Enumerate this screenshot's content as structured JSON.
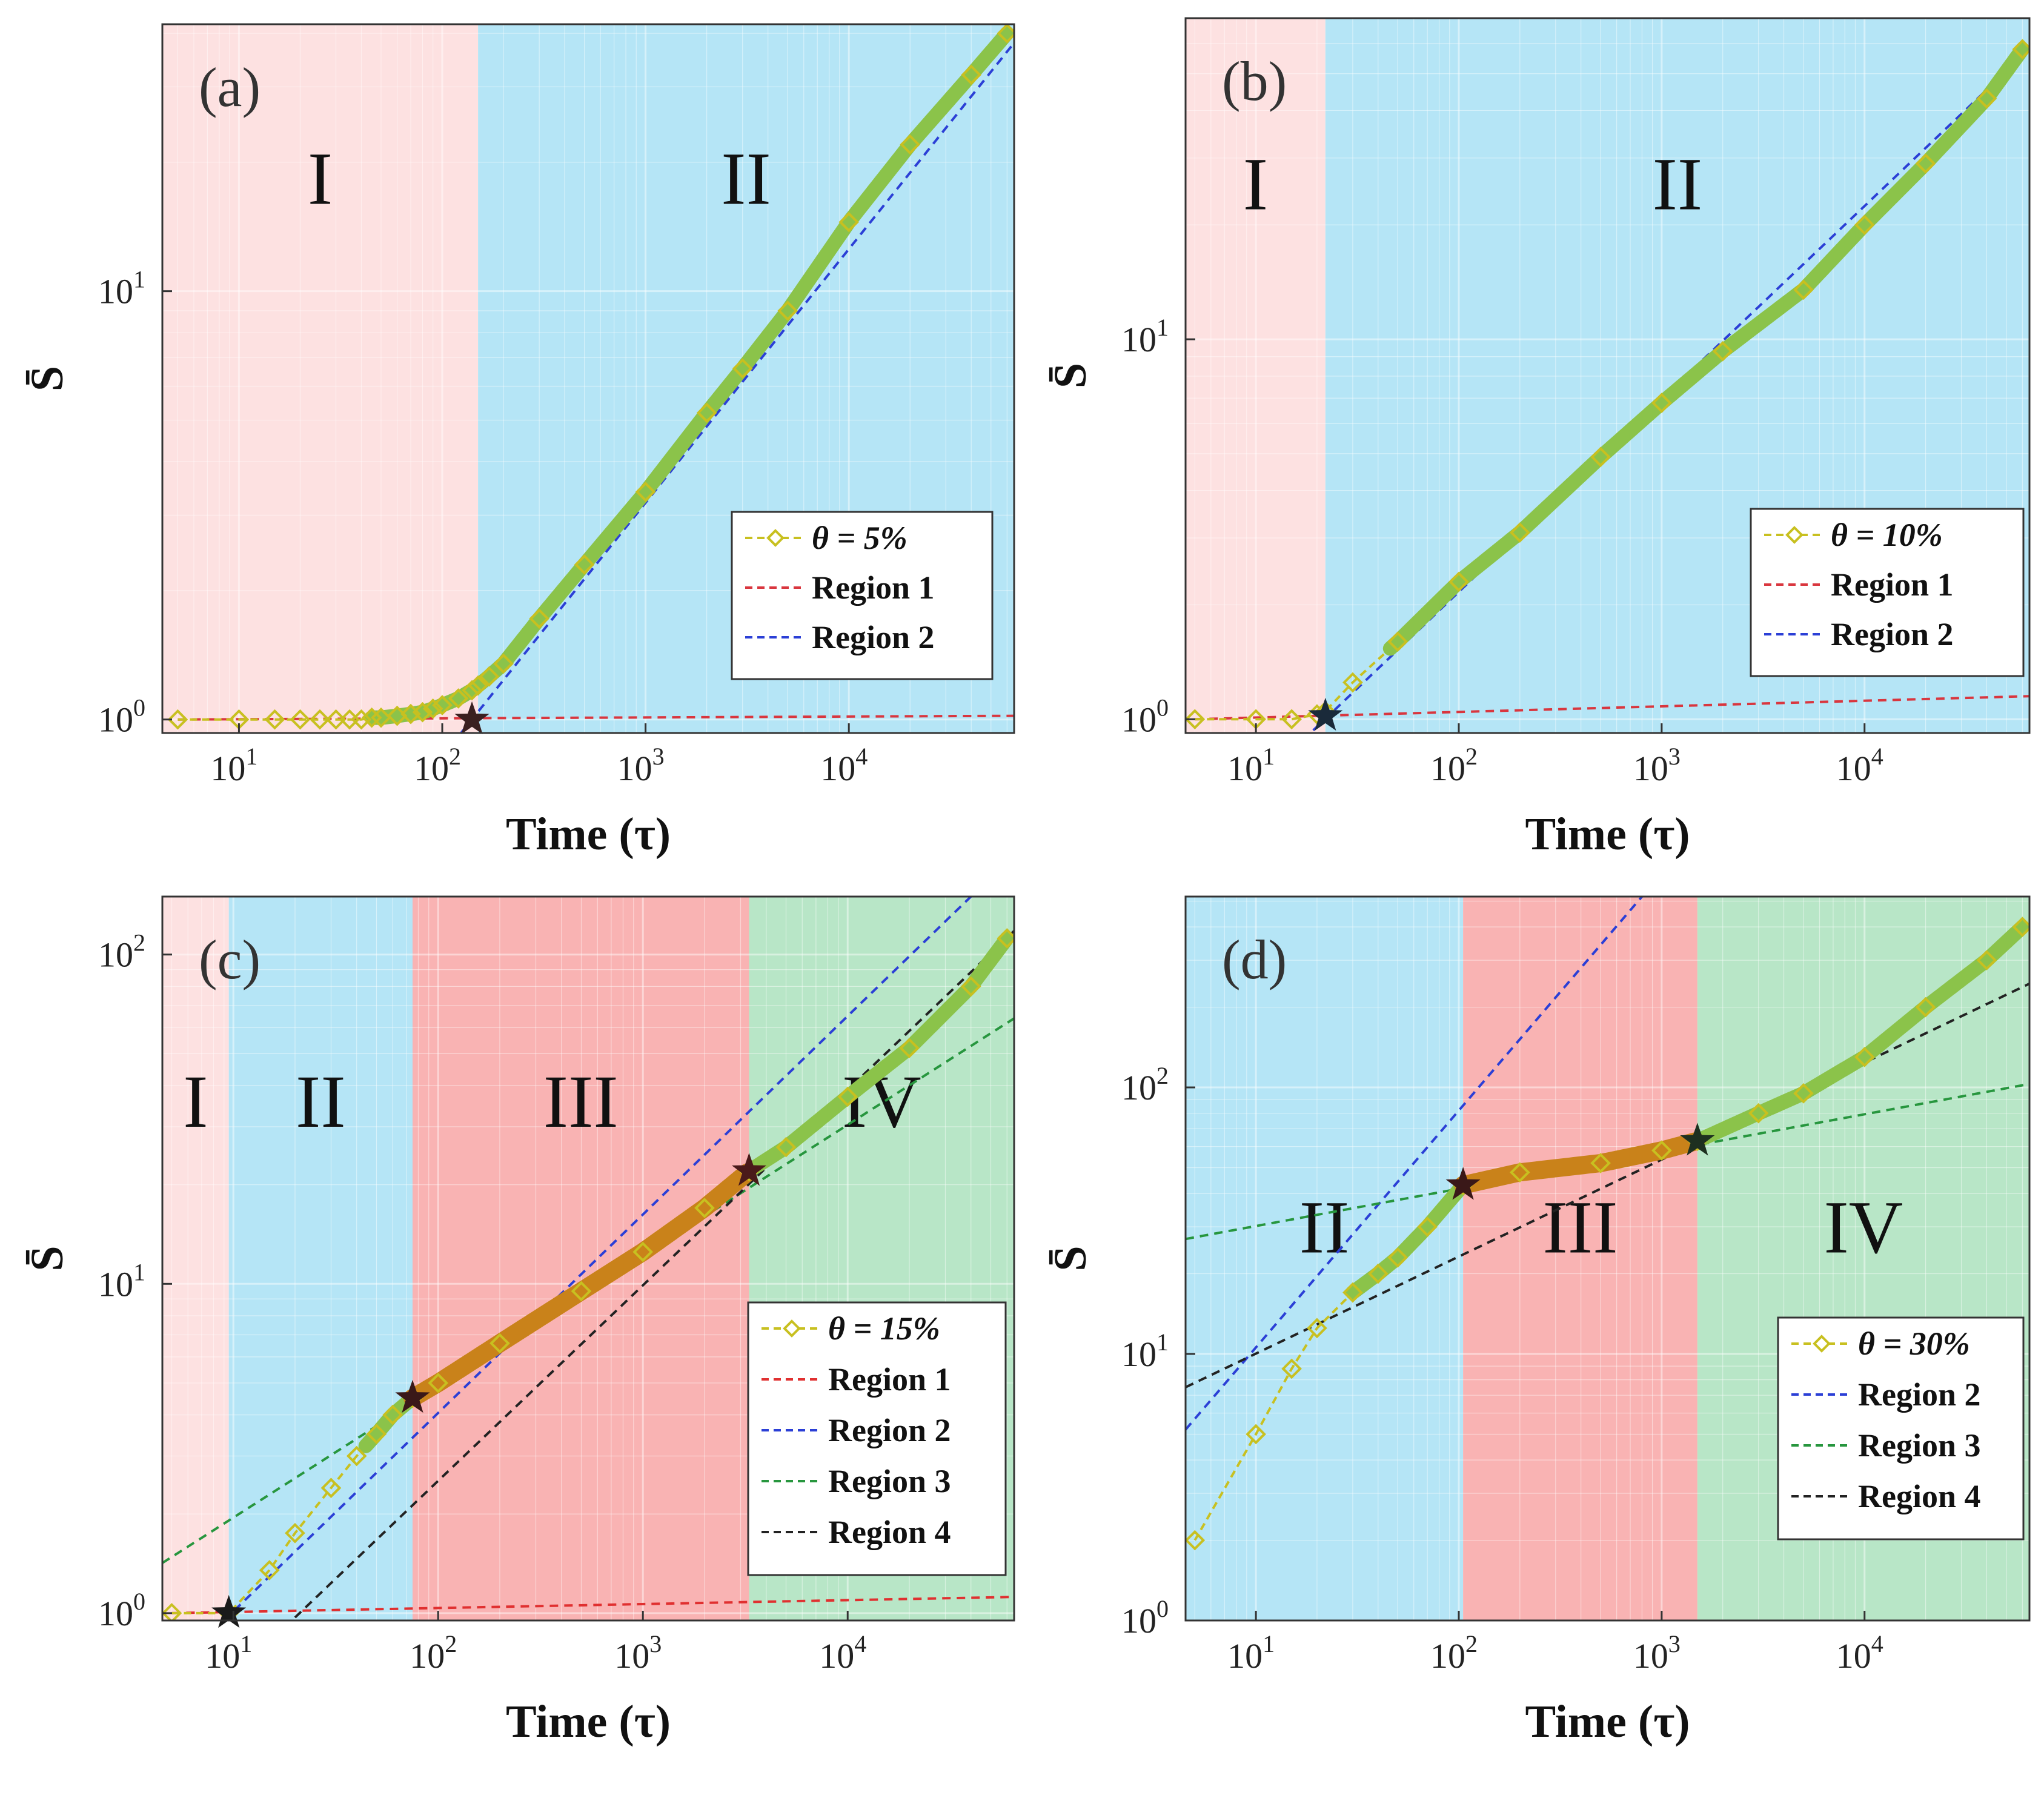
{
  "chart_data": [
    {
      "id": "a",
      "type": "line",
      "panel_label": "(a)",
      "xlabel": "Time (τ)",
      "ylabel": "S̄",
      "xscale": "log",
      "yscale": "log",
      "xlim": [
        4.2,
        65000
      ],
      "ylim": [
        0.93,
        42
      ],
      "x_ticks": [
        {
          "base": "10",
          "exp": "1",
          "value": 10
        },
        {
          "base": "10",
          "exp": "2",
          "value": 100
        },
        {
          "base": "10",
          "exp": "3",
          "value": 1000
        },
        {
          "base": "10",
          "exp": "4",
          "value": 10000
        }
      ],
      "y_ticks": [
        {
          "base": "10",
          "exp": "0",
          "value": 1
        },
        {
          "base": "10",
          "exp": "1",
          "value": 10
        }
      ],
      "regions": [
        {
          "label": "I",
          "x_start": 4.2,
          "x_end": 150,
          "color": "#fde1e1"
        },
        {
          "label": "II",
          "x_start": 150,
          "x_end": 65000,
          "color": "#b5e5f6"
        }
      ],
      "region_label_y": 16,
      "series": [
        {
          "name": "θ = 5%",
          "kind": "data",
          "color": "#c8c020",
          "marker_color": "#8bc34a",
          "x": [
            5,
            10,
            15,
            20,
            25,
            30,
            35,
            40,
            45,
            50,
            60,
            70,
            80,
            90,
            100,
            120,
            140,
            150,
            170,
            200,
            300,
            500,
            1000,
            2000,
            3000,
            5000,
            10000,
            20000,
            40000,
            60000
          ],
          "y": [
            1.0,
            1.0,
            1.0,
            1.0,
            1.0,
            1.0,
            1.0,
            1.0,
            1.01,
            1.01,
            1.02,
            1.03,
            1.04,
            1.06,
            1.08,
            1.12,
            1.17,
            1.2,
            1.26,
            1.35,
            1.72,
            2.3,
            3.4,
            5.2,
            6.6,
            9.0,
            14.5,
            22,
            32,
            40
          ]
        },
        {
          "name": "Region 1",
          "kind": "fit",
          "color": "#d9363e",
          "x": [
            5,
            65000
          ],
          "y": [
            1.0,
            1.02
          ]
        },
        {
          "name": "Region 2",
          "kind": "fit",
          "color": "#2b3fd6",
          "x": [
            100,
            65000
          ],
          "y": [
            0.82,
            38
          ]
        }
      ],
      "stars": [
        {
          "x": 140,
          "y": 1.0,
          "color": "#3a2020"
        }
      ],
      "legend": {
        "position": "lower-right",
        "entries": [
          {
            "label": "θ = 5%",
            "kind": "data",
            "color": "#c8c020"
          },
          {
            "label": "Region 1",
            "kind": "fit",
            "color": "#d9363e"
          },
          {
            "label": "Region 2",
            "kind": "fit",
            "color": "#2b3fd6"
          }
        ]
      }
    },
    {
      "id": "b",
      "type": "line",
      "panel_label": "(b)",
      "xlabel": "Time (τ)",
      "ylabel": "S̄",
      "xscale": "log",
      "yscale": "log",
      "xlim": [
        4.5,
        65000
      ],
      "ylim": [
        0.92,
        70
      ],
      "x_ticks": [
        {
          "base": "10",
          "exp": "1",
          "value": 10
        },
        {
          "base": "10",
          "exp": "2",
          "value": 100
        },
        {
          "base": "10",
          "exp": "3",
          "value": 1000
        },
        {
          "base": "10",
          "exp": "4",
          "value": 10000
        }
      ],
      "y_ticks": [
        {
          "base": "10",
          "exp": "0",
          "value": 1
        },
        {
          "base": "10",
          "exp": "1",
          "value": 10
        }
      ],
      "regions": [
        {
          "label": "I",
          "x_start": 4.5,
          "x_end": 22,
          "color": "#fde1e1"
        },
        {
          "label": "II",
          "x_start": 22,
          "x_end": 65000,
          "color": "#b5e5f6"
        }
      ],
      "region_label_y": 22,
      "series": [
        {
          "name": "θ = 10%",
          "kind": "data",
          "color": "#c8c020",
          "marker_color": "#8bc34a",
          "x": [
            5,
            10,
            15,
            20,
            22,
            30,
            50,
            100,
            200,
            500,
            1000,
            2000,
            5000,
            10000,
            20000,
            40000,
            60000
          ],
          "y": [
            1.0,
            1.0,
            1.0,
            1.03,
            1.05,
            1.25,
            1.6,
            2.3,
            3.1,
            4.9,
            6.8,
            9.3,
            13.5,
            20,
            29,
            43,
            58
          ]
        },
        {
          "name": "Region 1",
          "kind": "fit",
          "color": "#d9363e",
          "x": [
            5,
            65000
          ],
          "y": [
            1.0,
            1.15
          ]
        },
        {
          "name": "Region 2",
          "kind": "fit",
          "color": "#2b3fd6",
          "x": [
            17,
            65000
          ],
          "y": [
            0.88,
            58
          ]
        }
      ],
      "stars": [
        {
          "x": 22,
          "y": 1.02,
          "color": "#1a2a3a"
        }
      ],
      "legend": {
        "position": "lower-right",
        "entries": [
          {
            "label": "θ = 10%",
            "kind": "data",
            "color": "#c8c020"
          },
          {
            "label": "Region 1",
            "kind": "fit",
            "color": "#d9363e"
          },
          {
            "label": "Region 2",
            "kind": "fit",
            "color": "#2b3fd6"
          }
        ]
      }
    },
    {
      "id": "c",
      "type": "line",
      "panel_label": "(c)",
      "xlabel": "Time (τ)",
      "ylabel": "S̄",
      "xscale": "log",
      "yscale": "log",
      "xlim": [
        4.5,
        65000
      ],
      "ylim": [
        0.95,
        150
      ],
      "x_ticks": [
        {
          "base": "10",
          "exp": "1",
          "value": 10
        },
        {
          "base": "10",
          "exp": "2",
          "value": 100
        },
        {
          "base": "10",
          "exp": "3",
          "value": 1000
        },
        {
          "base": "10",
          "exp": "4",
          "value": 10000
        }
      ],
      "y_ticks": [
        {
          "base": "10",
          "exp": "0",
          "value": 1
        },
        {
          "base": "10",
          "exp": "1",
          "value": 10
        },
        {
          "base": "10",
          "exp": "2",
          "value": 100
        }
      ],
      "regions": [
        {
          "label": "I",
          "x_start": 4.5,
          "x_end": 9.5,
          "color": "#fde1e1"
        },
        {
          "label": "II",
          "x_start": 9.5,
          "x_end": 75,
          "color": "#b5e5f6"
        },
        {
          "label": "III",
          "x_start": 75,
          "x_end": 3300,
          "color": "#f9b3b3"
        },
        {
          "label": "IV",
          "x_start": 3300,
          "x_end": 65000,
          "color": "#b8e6c7"
        }
      ],
      "region_label_y": 30,
      "series": [
        {
          "name": "θ = 15%",
          "kind": "data",
          "color": "#c8c020",
          "marker_color": "#8bc34a",
          "x": [
            5,
            9.5,
            15,
            20,
            30,
            40,
            50,
            60,
            75,
            100,
            200,
            500,
            1000,
            2000,
            3300,
            5000,
            10000,
            20000,
            40000,
            60000
          ],
          "y": [
            1.0,
            1.0,
            1.35,
            1.75,
            2.4,
            3.0,
            3.5,
            4.0,
            4.5,
            5.0,
            6.6,
            9.5,
            12.5,
            17,
            22,
            26,
            37,
            52,
            80,
            112
          ]
        },
        {
          "name": "Region 1",
          "kind": "fit",
          "color": "#e03030",
          "x": [
            5,
            65000
          ],
          "y": [
            1.0,
            1.12
          ]
        },
        {
          "name": "Region 2",
          "kind": "fit",
          "color": "#2b3fd6",
          "x": [
            9,
            40000
          ],
          "y": [
            0.95,
            150
          ]
        },
        {
          "name": "Region 3",
          "kind": "fit",
          "color": "#27963e",
          "x": [
            4.5,
            65000
          ],
          "y": [
            1.42,
            64
          ]
        },
        {
          "name": "Region 4",
          "kind": "fit",
          "color": "#222222",
          "x": [
            20,
            65000
          ],
          "y": [
            0.97,
            118
          ]
        }
      ],
      "highlights": [
        {
          "x_start": 75,
          "x_end": 3300,
          "color": "#c9821a"
        }
      ],
      "stars": [
        {
          "x": 9.5,
          "y": 1.0,
          "color": "#1a1a1a"
        },
        {
          "x": 75,
          "y": 4.5,
          "color": "#3a1818"
        },
        {
          "x": 3300,
          "y": 22,
          "color": "#4a1a1a"
        }
      ],
      "legend": {
        "position": "lower-right",
        "entries": [
          {
            "label": "θ = 15%",
            "kind": "data",
            "color": "#c8c020"
          },
          {
            "label": "Region 1",
            "kind": "fit",
            "color": "#e03030"
          },
          {
            "label": "Region 2",
            "kind": "fit",
            "color": "#2b3fd6"
          },
          {
            "label": "Region 3",
            "kind": "fit",
            "color": "#27963e"
          },
          {
            "label": "Region 4",
            "kind": "fit",
            "color": "#222222"
          }
        ]
      }
    },
    {
      "id": "d",
      "type": "line",
      "panel_label": "(d)",
      "xlabel": "Time (τ)",
      "ylabel": "S̄",
      "xscale": "log",
      "yscale": "log",
      "xlim": [
        4.5,
        65000
      ],
      "ylim": [
        1,
        520
      ],
      "x_ticks": [
        {
          "base": "10",
          "exp": "1",
          "value": 10
        },
        {
          "base": "10",
          "exp": "2",
          "value": 100
        },
        {
          "base": "10",
          "exp": "3",
          "value": 1000
        },
        {
          "base": "10",
          "exp": "4",
          "value": 10000
        }
      ],
      "y_ticks": [
        {
          "base": "10",
          "exp": "0",
          "value": 1
        },
        {
          "base": "10",
          "exp": "1",
          "value": 10
        },
        {
          "base": "10",
          "exp": "2",
          "value": 100
        }
      ],
      "regions": [
        {
          "label": "II",
          "x_start": 4.5,
          "x_end": 105,
          "color": "#b5e5f6"
        },
        {
          "label": "III",
          "x_start": 105,
          "x_end": 1500,
          "color": "#f9b3b3"
        },
        {
          "label": "IV",
          "x_start": 1500,
          "x_end": 65000,
          "color": "#b8e6c7"
        }
      ],
      "region_label_y": 24,
      "series": [
        {
          "name": "θ = 30%",
          "kind": "data",
          "color": "#c8c020",
          "marker_color": "#8bc34a",
          "x": [
            5,
            10,
            15,
            20,
            30,
            40,
            50,
            70,
            105,
            200,
            500,
            1000,
            1500,
            3000,
            5000,
            10000,
            20000,
            40000,
            60000
          ],
          "y": [
            2.0,
            5.0,
            8.8,
            12.5,
            17,
            20,
            23,
            30,
            43,
            48,
            52,
            58,
            63,
            80,
            95,
            130,
            200,
            300,
            400
          ]
        },
        {
          "name": "Region 2",
          "kind": "fit",
          "color": "#2b3fd6",
          "x": [
            4.5,
            800
          ],
          "y": [
            5.2,
            520
          ]
        },
        {
          "name": "Region 3",
          "kind": "fit",
          "color": "#27963e",
          "x": [
            4.5,
            65000
          ],
          "y": [
            27,
            103
          ]
        },
        {
          "name": "Region 4",
          "kind": "fit",
          "color": "#222222",
          "x": [
            4.5,
            65000
          ],
          "y": [
            7.5,
            245
          ]
        }
      ],
      "highlights": [
        {
          "x_start": 105,
          "x_end": 1500,
          "color": "#c9821a"
        }
      ],
      "stars": [
        {
          "x": 105,
          "y": 43,
          "color": "#3a1818"
        },
        {
          "x": 1500,
          "y": 63,
          "color": "#1e3020"
        }
      ],
      "legend": {
        "position": "lower-right",
        "entries": [
          {
            "label": "θ = 30%",
            "kind": "data",
            "color": "#c8c020"
          },
          {
            "label": "Region 2",
            "kind": "fit",
            "color": "#2b3fd6"
          },
          {
            "label": "Region 3",
            "kind": "fit",
            "color": "#27963e"
          },
          {
            "label": "Region 4",
            "kind": "fit",
            "color": "#222222"
          }
        ]
      }
    }
  ]
}
